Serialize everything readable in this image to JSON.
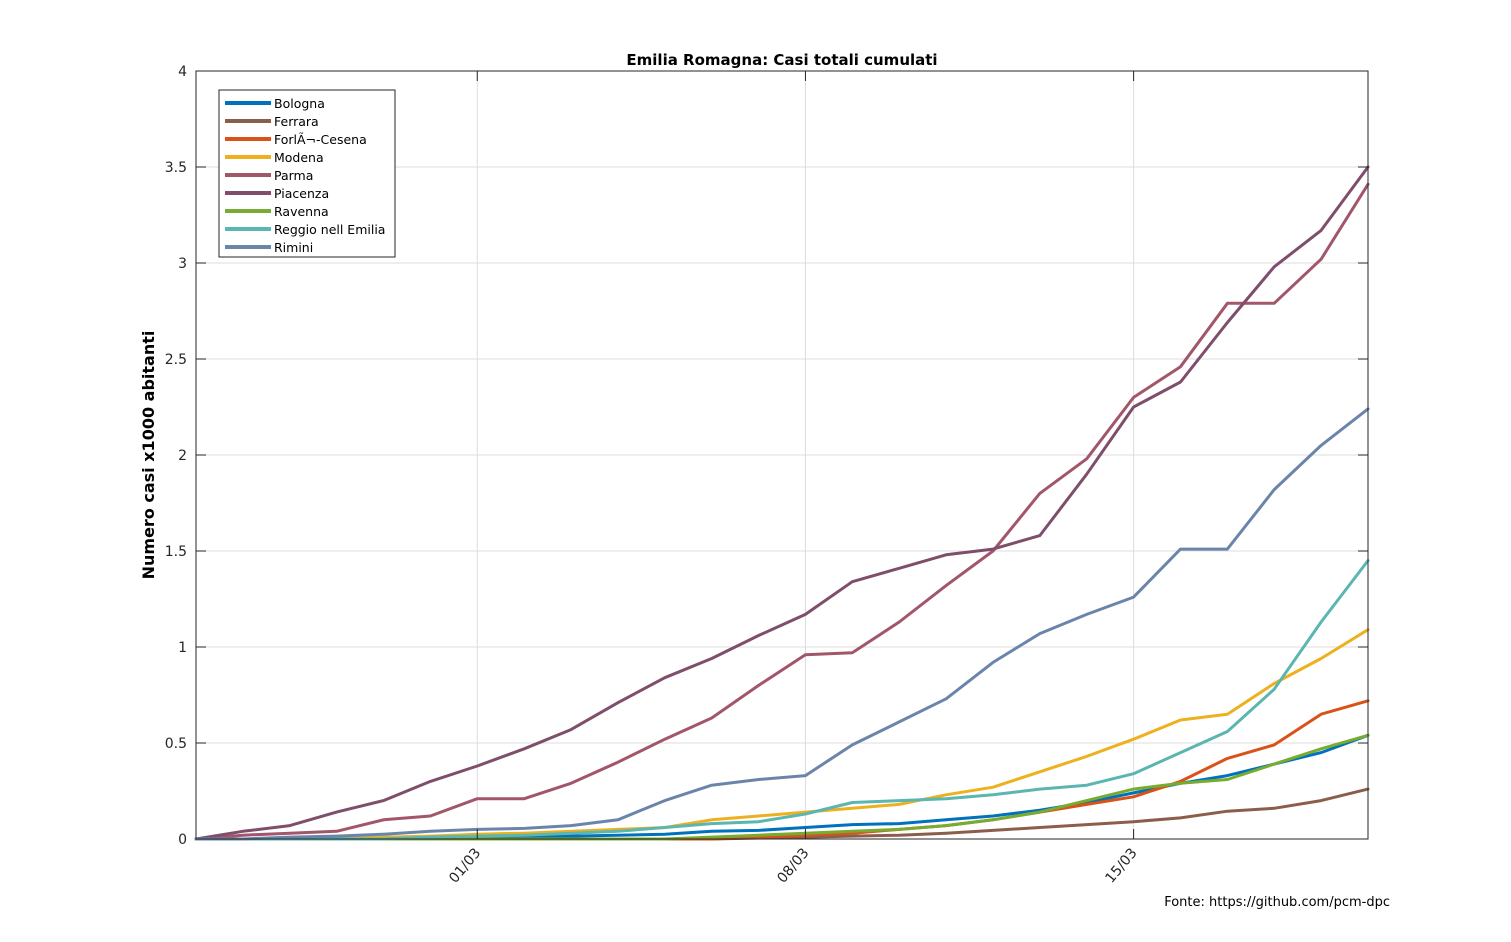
{
  "chart_data": {
    "type": "line",
    "title": "Emilia Romagna: Casi totali cumulati",
    "xlabel": "",
    "ylabel": "Numero casi x1000 abitanti",
    "x": [
      "24/02",
      "25/02",
      "26/02",
      "27/02",
      "28/02",
      "29/02",
      "01/03",
      "02/03",
      "03/03",
      "04/03",
      "05/03",
      "06/03",
      "07/03",
      "08/03",
      "09/03",
      "10/03",
      "11/03",
      "12/03",
      "13/03",
      "14/03",
      "15/03",
      "16/03",
      "17/03",
      "18/03",
      "19/03",
      "20/03"
    ],
    "x_ticks": [
      "01/03",
      "08/03",
      "15/03"
    ],
    "y_ticks": [
      "0",
      "0.5",
      "1",
      "1.5",
      "2",
      "2.5",
      "3",
      "3.5",
      "4"
    ],
    "ylim": [
      0,
      4
    ],
    "grid": true,
    "legend_position": "top-left",
    "series": [
      {
        "name": "Bologna",
        "color": "#0072BD",
        "values": [
          0,
          0,
          0,
          0,
          0,
          0.005,
          0.01,
          0.01,
          0.015,
          0.02,
          0.025,
          0.04,
          0.045,
          0.06,
          0.075,
          0.08,
          0.1,
          0.12,
          0.15,
          0.19,
          0.24,
          0.29,
          0.33,
          0.39,
          0.45,
          0.54
        ]
      },
      {
        "name": "Ferrara",
        "color": "#8B5E4B",
        "values": [
          0,
          0,
          0,
          0,
          0,
          0,
          0,
          0,
          0,
          0,
          0,
          0,
          0.005,
          0.01,
          0.015,
          0.02,
          0.03,
          0.045,
          0.06,
          0.075,
          0.09,
          0.11,
          0.145,
          0.16,
          0.2,
          0.26
        ]
      },
      {
        "name": "ForlÃ¬-Cesena",
        "color": "#D95319",
        "values": [
          0,
          0,
          0,
          0,
          0,
          0,
          0,
          0,
          0,
          0,
          0,
          0,
          0.01,
          0.02,
          0.03,
          0.05,
          0.07,
          0.1,
          0.14,
          0.18,
          0.22,
          0.3,
          0.42,
          0.49,
          0.65,
          0.72
        ]
      },
      {
        "name": "Modena",
        "color": "#EDB120",
        "values": [
          0,
          0,
          0,
          0.005,
          0.01,
          0.015,
          0.025,
          0.03,
          0.04,
          0.05,
          0.06,
          0.1,
          0.12,
          0.14,
          0.16,
          0.18,
          0.23,
          0.27,
          0.35,
          0.43,
          0.52,
          0.62,
          0.65,
          0.81,
          0.94,
          1.09
        ]
      },
      {
        "name": "Parma",
        "color": "#A2566A",
        "values": [
          0,
          0.02,
          0.03,
          0.04,
          0.1,
          0.12,
          0.21,
          0.21,
          0.29,
          0.4,
          0.52,
          0.63,
          0.8,
          0.96,
          0.97,
          1.13,
          1.32,
          1.5,
          1.8,
          1.98,
          2.3,
          2.46,
          2.79,
          2.79,
          3.02,
          3.41
        ]
      },
      {
        "name": "Piacenza",
        "color": "#7E4E6B",
        "values": [
          0,
          0.04,
          0.07,
          0.14,
          0.2,
          0.3,
          0.38,
          0.47,
          0.57,
          0.71,
          0.84,
          0.94,
          1.06,
          1.17,
          1.34,
          1.41,
          1.48,
          1.51,
          1.58,
          1.9,
          2.25,
          2.38,
          2.69,
          2.98,
          3.17,
          3.5
        ]
      },
      {
        "name": "Ravenna",
        "color": "#77AC30",
        "values": [
          0,
          0,
          0,
          0,
          0,
          0,
          0,
          0,
          0,
          0,
          0,
          0.01,
          0.02,
          0.03,
          0.04,
          0.05,
          0.07,
          0.1,
          0.14,
          0.2,
          0.26,
          0.29,
          0.31,
          0.39,
          0.47,
          0.54
        ]
      },
      {
        "name": "Reggio nell Emilia",
        "color": "#5BB5B0",
        "values": [
          0,
          0,
          0,
          0,
          0,
          0.01,
          0.015,
          0.02,
          0.03,
          0.04,
          0.06,
          0.08,
          0.09,
          0.13,
          0.19,
          0.2,
          0.21,
          0.23,
          0.26,
          0.28,
          0.34,
          0.45,
          0.56,
          0.78,
          1.13,
          1.45
        ]
      },
      {
        "name": "Rimini",
        "color": "#6B85AA",
        "values": [
          0,
          0,
          0.01,
          0.015,
          0.025,
          0.04,
          0.05,
          0.055,
          0.07,
          0.1,
          0.2,
          0.28,
          0.31,
          0.33,
          0.49,
          0.61,
          0.73,
          0.92,
          1.07,
          1.17,
          1.26,
          1.51,
          1.51,
          1.82,
          2.05,
          2.24
        ]
      }
    ]
  },
  "source_note": "Fonte: https://github.com/pcm-dpc"
}
